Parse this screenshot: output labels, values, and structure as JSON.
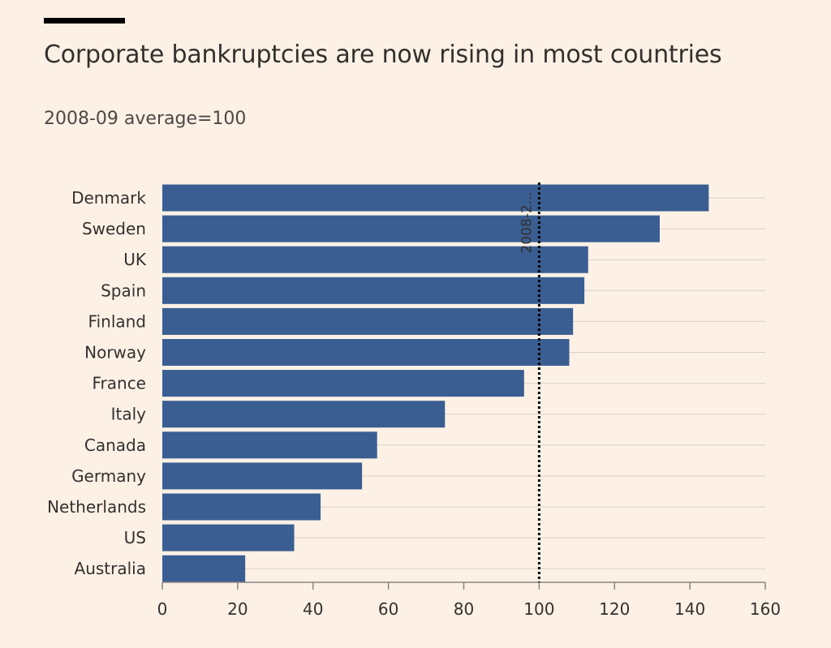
{
  "header": {
    "title": "Corporate bankruptcies are now rising in most countries",
    "subtitle": "2008-09 average=100"
  },
  "colors": {
    "background": "#fdf1e6",
    "bar": "#3a5e92",
    "gridline": "#d9cfc5",
    "text": "#33302e",
    "reference_line": "#000000"
  },
  "chart_data": {
    "type": "bar",
    "orientation": "horizontal",
    "title": "Corporate bankruptcies are now rising in most countries",
    "subtitle": "2008-09 average=100",
    "categories": [
      "Denmark",
      "Sweden",
      "UK",
      "Spain",
      "Finland",
      "Norway",
      "France",
      "Italy",
      "Canada",
      "Germany",
      "Netherlands",
      "US",
      "Australia"
    ],
    "values": [
      145,
      132,
      113,
      112,
      109,
      108,
      96,
      75,
      57,
      53,
      42,
      35,
      22
    ],
    "xlim": [
      0,
      160
    ],
    "xticks": [
      0,
      20,
      40,
      60,
      80,
      100,
      120,
      140,
      160
    ],
    "xlabel": "",
    "ylabel": "",
    "grid": true,
    "reference_line": {
      "value": 100,
      "style": "dotted",
      "label": "2008-2..."
    }
  }
}
